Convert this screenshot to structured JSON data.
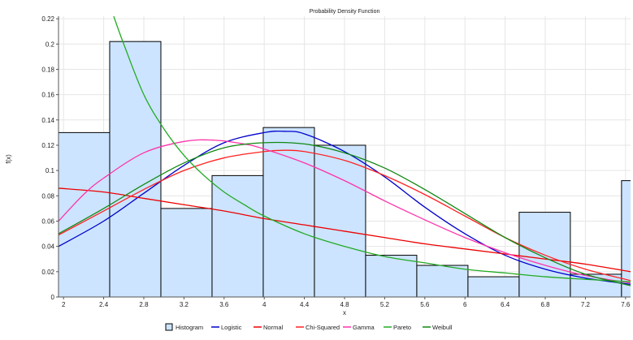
{
  "chart_data": {
    "type": "bar",
    "title": "Probability Density Function",
    "xlabel": "x",
    "ylabel": "f(x)",
    "xlim": [
      1.95,
      7.65
    ],
    "ylim": [
      0,
      0.222
    ],
    "x_ticks": [
      "2",
      "2.4",
      "2.8",
      "3.2",
      "3.6",
      "4",
      "4.4",
      "4.8",
      "5.2",
      "5.6",
      "6",
      "6.4",
      "6.8",
      "7.2",
      "7.6"
    ],
    "x_tick_values": [
      2,
      2.4,
      2.8,
      3.2,
      3.6,
      4,
      4.4,
      4.8,
      5.2,
      5.6,
      6,
      6.4,
      6.8,
      7.2,
      7.6
    ],
    "y_ticks": [
      "0",
      "0.02",
      "0.04",
      "0.06",
      "0.08",
      "0.1",
      "0.12",
      "0.14",
      "0.16",
      "0.18",
      "0.2",
      "0.22"
    ],
    "y_tick_values": [
      0,
      0.02,
      0.04,
      0.06,
      0.08,
      0.1,
      0.12,
      0.14,
      0.16,
      0.18,
      0.2,
      0.22
    ],
    "grid": true,
    "legend_position": "bottom",
    "histogram": {
      "name": "Histogram",
      "fill": "#cce4ff",
      "stroke": "#000000",
      "bins": [
        {
          "x0": 1.95,
          "x1": 2.46,
          "value": 0.13
        },
        {
          "x0": 2.46,
          "x1": 2.97,
          "value": 0.202
        },
        {
          "x0": 2.97,
          "x1": 3.48,
          "value": 0.07
        },
        {
          "x0": 3.48,
          "x1": 3.99,
          "value": 0.096
        },
        {
          "x0": 3.99,
          "x1": 4.5,
          "value": 0.134
        },
        {
          "x0": 4.5,
          "x1": 5.01,
          "value": 0.12
        },
        {
          "x0": 5.01,
          "x1": 5.52,
          "value": 0.033
        },
        {
          "x0": 5.52,
          "x1": 6.03,
          "value": 0.025
        },
        {
          "x0": 6.03,
          "x1": 6.54,
          "value": 0.016
        },
        {
          "x0": 6.54,
          "x1": 7.05,
          "value": 0.067
        },
        {
          "x0": 7.05,
          "x1": 7.56,
          "value": 0.018
        },
        {
          "x0": 7.56,
          "x1": 8.07,
          "value": 0.092
        }
      ]
    },
    "series": [
      {
        "name": "Logistic",
        "color": "#0000cc",
        "x": [
          1.95,
          2.4,
          2.8,
          3.2,
          3.6,
          4.0,
          4.2,
          4.4,
          4.8,
          5.2,
          5.6,
          6.0,
          6.4,
          6.8,
          7.2,
          7.65
        ],
        "y": [
          0.04,
          0.06,
          0.082,
          0.104,
          0.122,
          0.13,
          0.131,
          0.129,
          0.115,
          0.095,
          0.071,
          0.05,
          0.033,
          0.022,
          0.015,
          0.01
        ]
      },
      {
        "name": "Normal",
        "color": "#ee0000",
        "x": [
          1.95,
          2.4,
          2.8,
          3.2,
          3.6,
          4.0,
          4.4,
          4.8,
          5.2,
          5.6,
          6.0,
          6.4,
          6.8,
          7.2,
          7.65
        ],
        "y": [
          0.086,
          0.083,
          0.078,
          0.073,
          0.068,
          0.062,
          0.057,
          0.052,
          0.047,
          0.042,
          0.038,
          0.034,
          0.03,
          0.026,
          0.02
        ]
      },
      {
        "name": "Chi-Squared",
        "color": "#ff2222",
        "x": [
          1.95,
          2.4,
          2.8,
          3.2,
          3.6,
          4.0,
          4.2,
          4.4,
          4.8,
          5.2,
          5.6,
          6.0,
          6.4,
          6.8,
          7.2,
          7.65
        ],
        "y": [
          0.049,
          0.068,
          0.085,
          0.1,
          0.11,
          0.115,
          0.116,
          0.115,
          0.108,
          0.096,
          0.081,
          0.064,
          0.047,
          0.033,
          0.022,
          0.013
        ]
      },
      {
        "name": "Gamma",
        "color": "#ff33aa",
        "x": [
          1.95,
          2.2,
          2.4,
          2.8,
          3.2,
          3.5,
          3.8,
          4.0,
          4.4,
          4.8,
          5.2,
          5.6,
          6.0,
          6.4,
          6.8,
          7.2,
          7.65
        ],
        "y": [
          0.06,
          0.081,
          0.094,
          0.114,
          0.123,
          0.124,
          0.121,
          0.117,
          0.106,
          0.092,
          0.076,
          0.061,
          0.047,
          0.035,
          0.025,
          0.017,
          0.011
        ]
      },
      {
        "name": "Pareto",
        "color": "#22aa22",
        "x": [
          2.5,
          2.6,
          2.8,
          3.0,
          3.2,
          3.4,
          3.6,
          3.8,
          4.0,
          4.4,
          4.8,
          5.2,
          5.6,
          6.0,
          6.4,
          6.8,
          7.2,
          7.65
        ],
        "y": [
          0.222,
          0.2,
          0.16,
          0.133,
          0.112,
          0.096,
          0.083,
          0.073,
          0.064,
          0.05,
          0.04,
          0.032,
          0.027,
          0.022,
          0.019,
          0.016,
          0.014,
          0.012
        ]
      },
      {
        "name": "Weibull",
        "color": "#118811",
        "x": [
          1.95,
          2.4,
          2.8,
          3.2,
          3.6,
          4.0,
          4.4,
          4.8,
          5.2,
          5.6,
          6.0,
          6.4,
          6.8,
          7.2,
          7.65
        ],
        "y": [
          0.05,
          0.07,
          0.089,
          0.106,
          0.118,
          0.122,
          0.121,
          0.114,
          0.102,
          0.085,
          0.066,
          0.047,
          0.031,
          0.018,
          0.009
        ]
      }
    ]
  }
}
